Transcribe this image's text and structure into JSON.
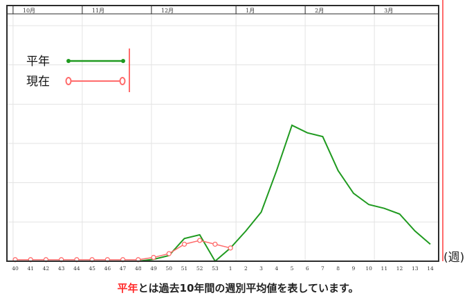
{
  "caption": {
    "highlight": "平年",
    "rest": "とは過去10年間の週別平均値を表しています。"
  },
  "x_unit_label": "(週)",
  "colors": {
    "average": "#1f9a1f",
    "current": "#ff6b6b",
    "frame": "#2b2b2b",
    "grid": "#e3e3e3",
    "marker_line": "#ff3a3a"
  },
  "chart_data": {
    "type": "line",
    "title": "",
    "xlabel": "(週)",
    "ylabel": "",
    "categories": [
      "40",
      "41",
      "42",
      "43",
      "44",
      "45",
      "46",
      "47",
      "48",
      "49",
      "50",
      "51",
      "52",
      "53",
      "1",
      "2",
      "3",
      "4",
      "5",
      "6",
      "7",
      "8",
      "9",
      "10",
      "11",
      "12",
      "13",
      "14"
    ],
    "months": [
      "10月",
      "11月",
      "12月",
      "1月",
      "2月",
      "3月"
    ],
    "ylim": [
      0,
      6
    ],
    "grid": true,
    "legend": {
      "placement": "top-left"
    },
    "series": [
      {
        "name": "平年",
        "marker": "filled-circle",
        "values": [
          0,
          0,
          0,
          0,
          0,
          0,
          0,
          0,
          0,
          0.05,
          0.15,
          0.6,
          0.7,
          0,
          0.35,
          0.8,
          1.3,
          2.4,
          3.6,
          3.4,
          3.3,
          2.4,
          1.8,
          1.5,
          1.4,
          1.25,
          0.8,
          0.45
        ]
      },
      {
        "name": "現在",
        "marker": "open-circle",
        "values": [
          0.04,
          0.04,
          0.04,
          0.04,
          0.04,
          0.04,
          0.04,
          0.04,
          0.04,
          0.1,
          0.2,
          0.45,
          0.55,
          0.45,
          0.35,
          null,
          null,
          null,
          null,
          null,
          null,
          null,
          null,
          null,
          null,
          null,
          null,
          null
        ]
      }
    ]
  }
}
